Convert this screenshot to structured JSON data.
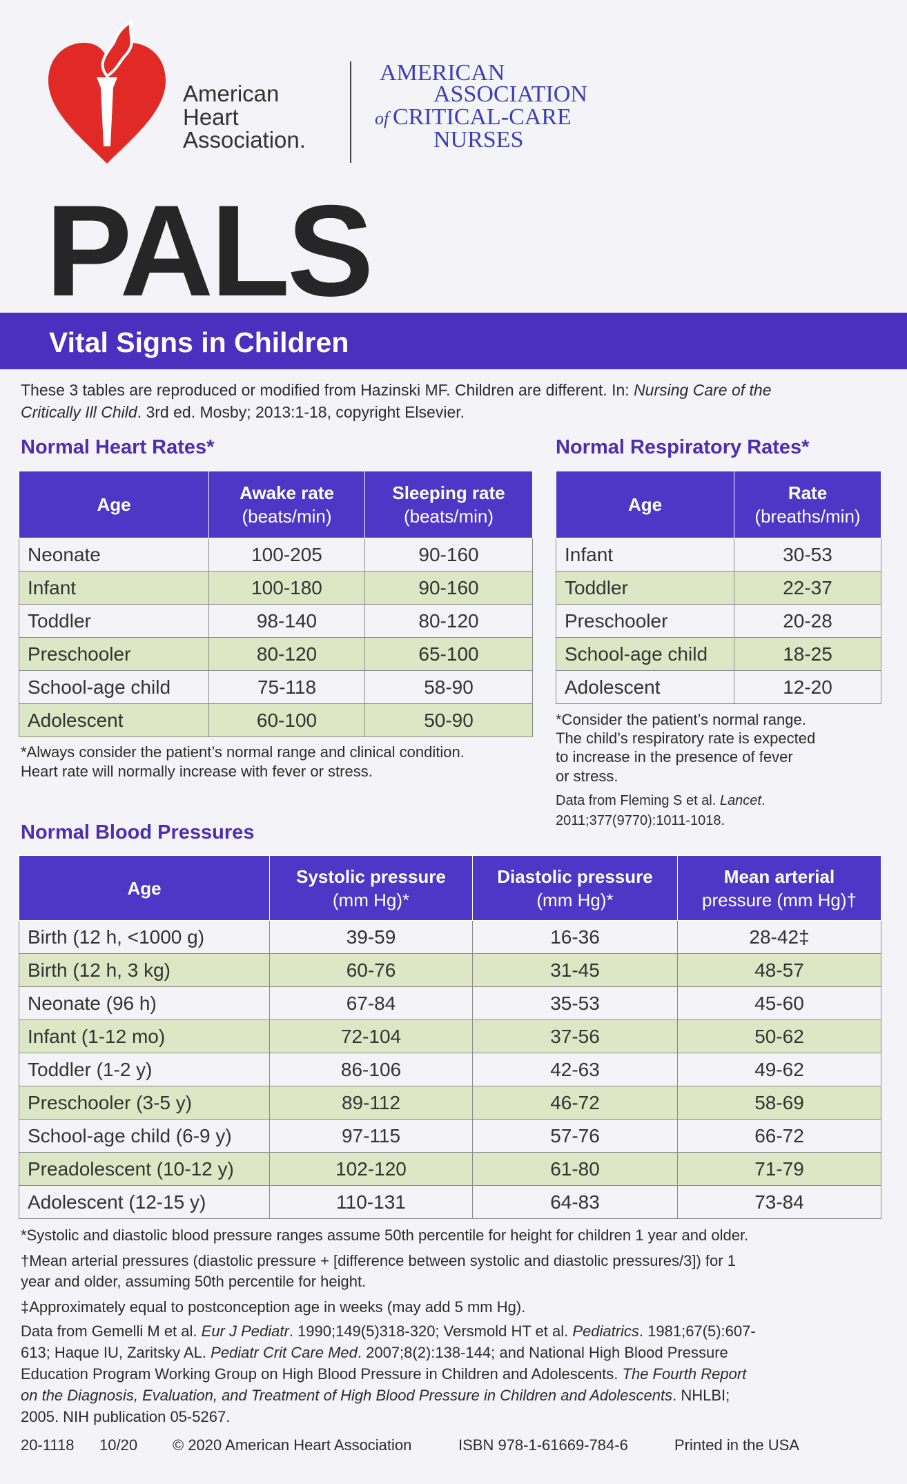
{
  "header": {
    "aha": [
      "American",
      "Heart",
      "Association."
    ],
    "aacn": [
      "AMERICAN",
      "ASSOCIATION",
      "of",
      "CRITICAL-CARE",
      "NURSES"
    ]
  },
  "title": "PALS",
  "banner": "Vital Signs in Children",
  "intro": [
    [
      {
        "text": "These 3 tables are reproduced or modified from Hazinski MF. Children are different. In: "
      },
      {
        "text": "Nursing Care of the",
        "italic": true
      }
    ],
    [
      {
        "text": "Critically Ill Child",
        "italic": true
      },
      {
        "text": ". 3rd ed. Mosby; 2013:1-18, copyright Elsevier."
      }
    ]
  ],
  "heart_rates": {
    "title": "Normal Heart Rates*",
    "columns": [
      [
        "Age"
      ],
      [
        "Awake rate",
        "(beats/min)"
      ],
      [
        "Sleeping rate",
        "(beats/min)"
      ]
    ],
    "rows": [
      [
        "Neonate",
        "100-205",
        "90-160"
      ],
      [
        "Infant",
        "100-180",
        "90-160"
      ],
      [
        "Toddler",
        "98-140",
        "80-120"
      ],
      [
        "Preschooler",
        "80-120",
        "65-100"
      ],
      [
        "School-age child",
        "75-118",
        "58-90"
      ],
      [
        "Adolescent",
        "60-100",
        "50-90"
      ]
    ],
    "notes": [
      "*Always consider the patient’s normal range and clinical condition.",
      "Heart rate will normally increase with fever or stress."
    ]
  },
  "respiratory_rates": {
    "title": "Normal Respiratory Rates*",
    "columns": [
      [
        "Age"
      ],
      [
        "Rate",
        "(breaths/min)"
      ]
    ],
    "rows": [
      [
        "Infant",
        "30-53"
      ],
      [
        "Toddler",
        "22-37"
      ],
      [
        "Preschooler",
        "20-28"
      ],
      [
        "School-age child",
        "18-25"
      ],
      [
        "Adolescent",
        "12-20"
      ]
    ],
    "notes": [
      "*Consider the patient’s normal range.",
      "The child’s respiratory rate is expected",
      "to increase in the presence of fever",
      "or stress."
    ],
    "source": [
      [
        {
          "text": "Data from Fleming S et al. "
        },
        {
          "text": "Lancet",
          "italic": true
        },
        {
          "text": "."
        }
      ],
      "2011;377(9770):1011-1018."
    ]
  },
  "blood_pressures": {
    "title": "Normal Blood Pressures",
    "columns": [
      [
        "Age"
      ],
      [
        "Systolic pressure",
        "(mm Hg)*"
      ],
      [
        "Diastolic pressure",
        "(mm Hg)*"
      ],
      [
        "Mean arterial",
        "pressure (mm Hg)†"
      ]
    ],
    "rows": [
      [
        "Birth (12 h, <1000 g)",
        "39-59",
        "16-36",
        "28-42‡"
      ],
      [
        "Birth (12 h, 3 kg)",
        "60-76",
        "31-45",
        "48-57"
      ],
      [
        "Neonate (96 h)",
        "67-84",
        "35-53",
        "45-60"
      ],
      [
        "Infant (1-12 mo)",
        "72-104",
        "37-56",
        "50-62"
      ],
      [
        "Toddler (1-2 y)",
        "86-106",
        "42-63",
        "49-62"
      ],
      [
        "Preschooler (3-5 y)",
        "89-112",
        "46-72",
        "58-69"
      ],
      [
        "School-age child (6-9 y)",
        "97-115",
        "57-76",
        "66-72"
      ],
      [
        "Preadolescent (10-12 y)",
        "102-120",
        "61-80",
        "71-79"
      ],
      [
        "Adolescent (12-15 y)",
        "110-131",
        "64-83",
        "73-84"
      ]
    ],
    "notes": [
      "*Systolic and diastolic blood pressure ranges assume 50th percentile for height for children 1 year and older.",
      "†Mean arterial pressures (diastolic pressure + [difference between systolic and diastolic pressures/3]) for 1",
      "year and older, assuming 50th percentile for height.",
      "‡Approximately equal to postconception age in weeks (may add 5 mm Hg)."
    ],
    "source": [
      [
        {
          "text": "Data from Gemelli M et al. "
        },
        {
          "text": "Eur J Pediatr",
          "italic": true
        },
        {
          "text": ". 1990;149(5)318-320; Versmold HT et al. "
        },
        {
          "text": "Pediatrics",
          "italic": true
        },
        {
          "text": ". 1981;67(5):607-"
        }
      ],
      [
        {
          "text": "613; Haque IU, Zaritsky AL. "
        },
        {
          "text": "Pediatr Crit Care Med",
          "italic": true
        },
        {
          "text": ". 2007;8(2):138-144; and National High Blood Pressure"
        }
      ],
      [
        {
          "text": "Education Program Working Group on High Blood Pressure in Children and Adolescents. "
        },
        {
          "text": "The Fourth Report",
          "italic": true
        }
      ],
      [
        {
          "text": "on the Diagnosis, Evaluation, and Treatment of High Blood Pressure in Children and Adolescents",
          "italic": true
        },
        {
          "text": ". NHLBI;"
        }
      ],
      "2005. NIH publication 05-5267."
    ]
  },
  "footer": [
    "20-1118",
    "10/20",
    "© 2020 American Heart Association",
    "ISBN 978-1-61669-784-6",
    "Printed in the USA"
  ]
}
